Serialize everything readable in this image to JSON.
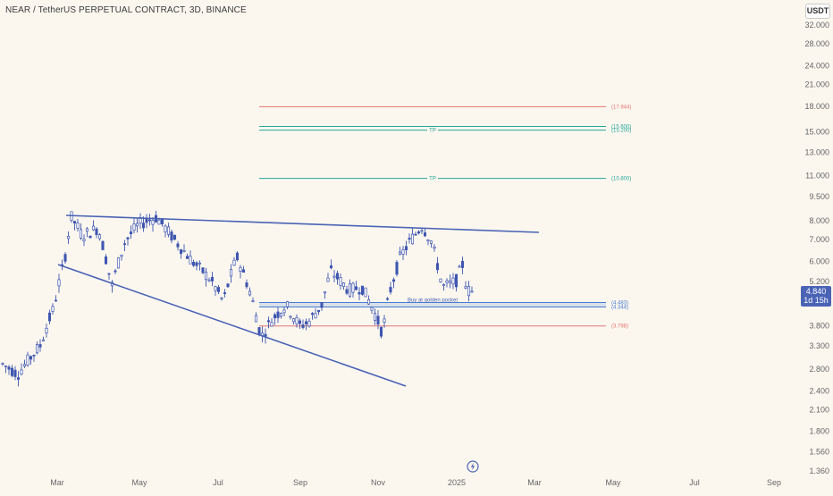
{
  "header": {
    "symbol_title": "NEAR / TetherUS PERPETUAL CONTRACT, 3D, BINANCE",
    "currency_button": "USDT"
  },
  "current_price": {
    "value": "4.840",
    "countdown": "1d 15h"
  },
  "price_axis": {
    "ticks": [
      "32.000",
      "28.000",
      "24.000",
      "21.000",
      "18.000",
      "15.000",
      "13.000",
      "11.000",
      "9.500",
      "8.000",
      "7.000",
      "6.000",
      "5.200",
      "3.800",
      "3.300",
      "2.800",
      "2.400",
      "2.100",
      "1.800",
      "1.560",
      "1.360"
    ]
  },
  "time_axis": {
    "ticks": [
      "Mar",
      "May",
      "Jul",
      "Sep",
      "Nov",
      "2025",
      "Mar",
      "May",
      "Jul",
      "Sep"
    ]
  },
  "levels": [
    {
      "label": "(17.944)",
      "price": 17.944,
      "color": "#e57373",
      "tag": ""
    },
    {
      "label": "(15.600)",
      "price": 15.6,
      "color": "#26a69a",
      "tag": ""
    },
    {
      "label": "(15.200)",
      "price": 15.2,
      "color": "#26a69a",
      "tag": "TP"
    },
    {
      "label": "(10.800)",
      "price": 10.8,
      "color": "#26a69a",
      "tag": "TP"
    },
    {
      "label": "(4.483)",
      "price": 4.483,
      "color": "#4a7bd0",
      "tag": ""
    },
    {
      "label": "(4.344)",
      "price": 4.344,
      "color": "#4a7bd0",
      "tag": ""
    },
    {
      "label": "(3.798)",
      "price": 3.798,
      "color": "#e57373",
      "tag": ""
    }
  ],
  "zone_text": "Buy at golden pocket",
  "colors": {
    "candle": "#3f56b0",
    "trendline": "#4a63b5",
    "background": "#fbf7ef"
  },
  "icons": {
    "bottom": "lightning-icon"
  }
}
